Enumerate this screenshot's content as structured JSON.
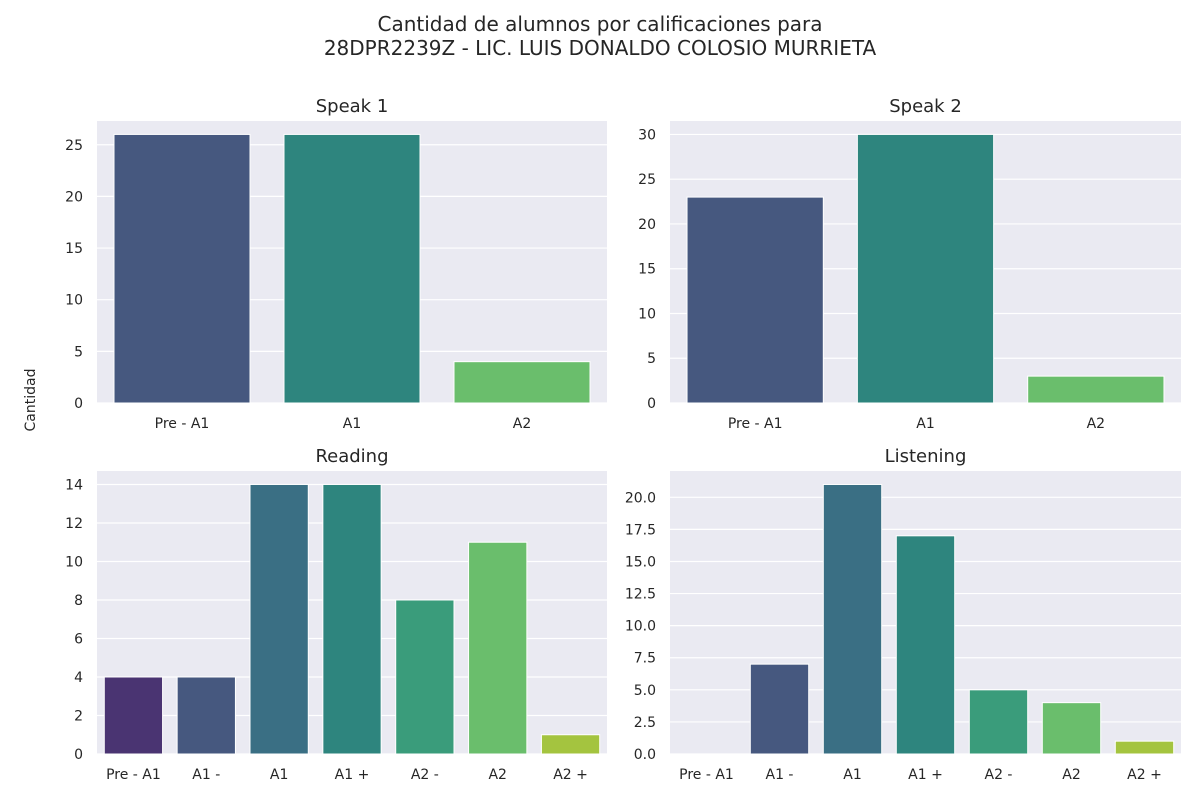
{
  "figure": {
    "title_line1": "Cantidad de alumnos por calificaciones para",
    "title_line2": "28DPR2239Z - LIC. LUIS DONALDO COLOSIO MURRIETA",
    "ylabel": "Cantidad"
  },
  "colors": {
    "plot_bg": "#eaeaf2",
    "grid": "#ffffff",
    "viridis_3": [
      "#46587f",
      "#2e857e",
      "#6abe6c"
    ],
    "viridis_7": [
      "#4a3472",
      "#46587f",
      "#3a6f84",
      "#2e857e",
      "#3a9c7b",
      "#6abe6c",
      "#a4c43f"
    ]
  },
  "chart_data": [
    {
      "type": "bar",
      "title": "Speak 1",
      "categories": [
        "Pre - A1",
        "A1",
        "A2"
      ],
      "values": [
        26,
        26,
        4
      ],
      "ylim": [
        0,
        27.3
      ],
      "yticks": [
        0,
        5,
        10,
        15,
        20,
        25
      ],
      "ytick_labels": [
        "0",
        "5",
        "10",
        "15",
        "20",
        "25"
      ],
      "grid": true,
      "palette": "viridis_3"
    },
    {
      "type": "bar",
      "title": "Speak 2",
      "categories": [
        "Pre - A1",
        "A1",
        "A2"
      ],
      "values": [
        23,
        30,
        3
      ],
      "ylim": [
        0,
        31.5
      ],
      "yticks": [
        0,
        5,
        10,
        15,
        20,
        25,
        30
      ],
      "ytick_labels": [
        "0",
        "5",
        "10",
        "15",
        "20",
        "25",
        "30"
      ],
      "grid": true,
      "palette": "viridis_3"
    },
    {
      "type": "bar",
      "title": "Reading",
      "categories": [
        "Pre - A1",
        "A1 -",
        "A1",
        "A1 +",
        "A2 -",
        "A2",
        "A2 +"
      ],
      "values": [
        4,
        4,
        14,
        14,
        8,
        11,
        1
      ],
      "ylim": [
        0,
        14.7
      ],
      "yticks": [
        0,
        2,
        4,
        6,
        8,
        10,
        12,
        14
      ],
      "ytick_labels": [
        "0",
        "2",
        "4",
        "6",
        "8",
        "10",
        "12",
        "14"
      ],
      "grid": true,
      "palette": "viridis_7"
    },
    {
      "type": "bar",
      "title": "Listening",
      "categories": [
        "Pre - A1",
        "A1 -",
        "A1",
        "A1 +",
        "A2 -",
        "A2",
        "A2 +"
      ],
      "values": [
        0,
        7,
        21,
        17,
        5,
        4,
        1
      ],
      "ylim": [
        0,
        22.05
      ],
      "yticks": [
        0,
        2.5,
        5,
        7.5,
        10,
        12.5,
        15,
        17.5,
        20
      ],
      "ytick_labels": [
        "0.0",
        "2.5",
        "5.0",
        "7.5",
        "10.0",
        "12.5",
        "15.0",
        "17.5",
        "20.0"
      ],
      "grid": true,
      "palette": "viridis_7"
    }
  ]
}
